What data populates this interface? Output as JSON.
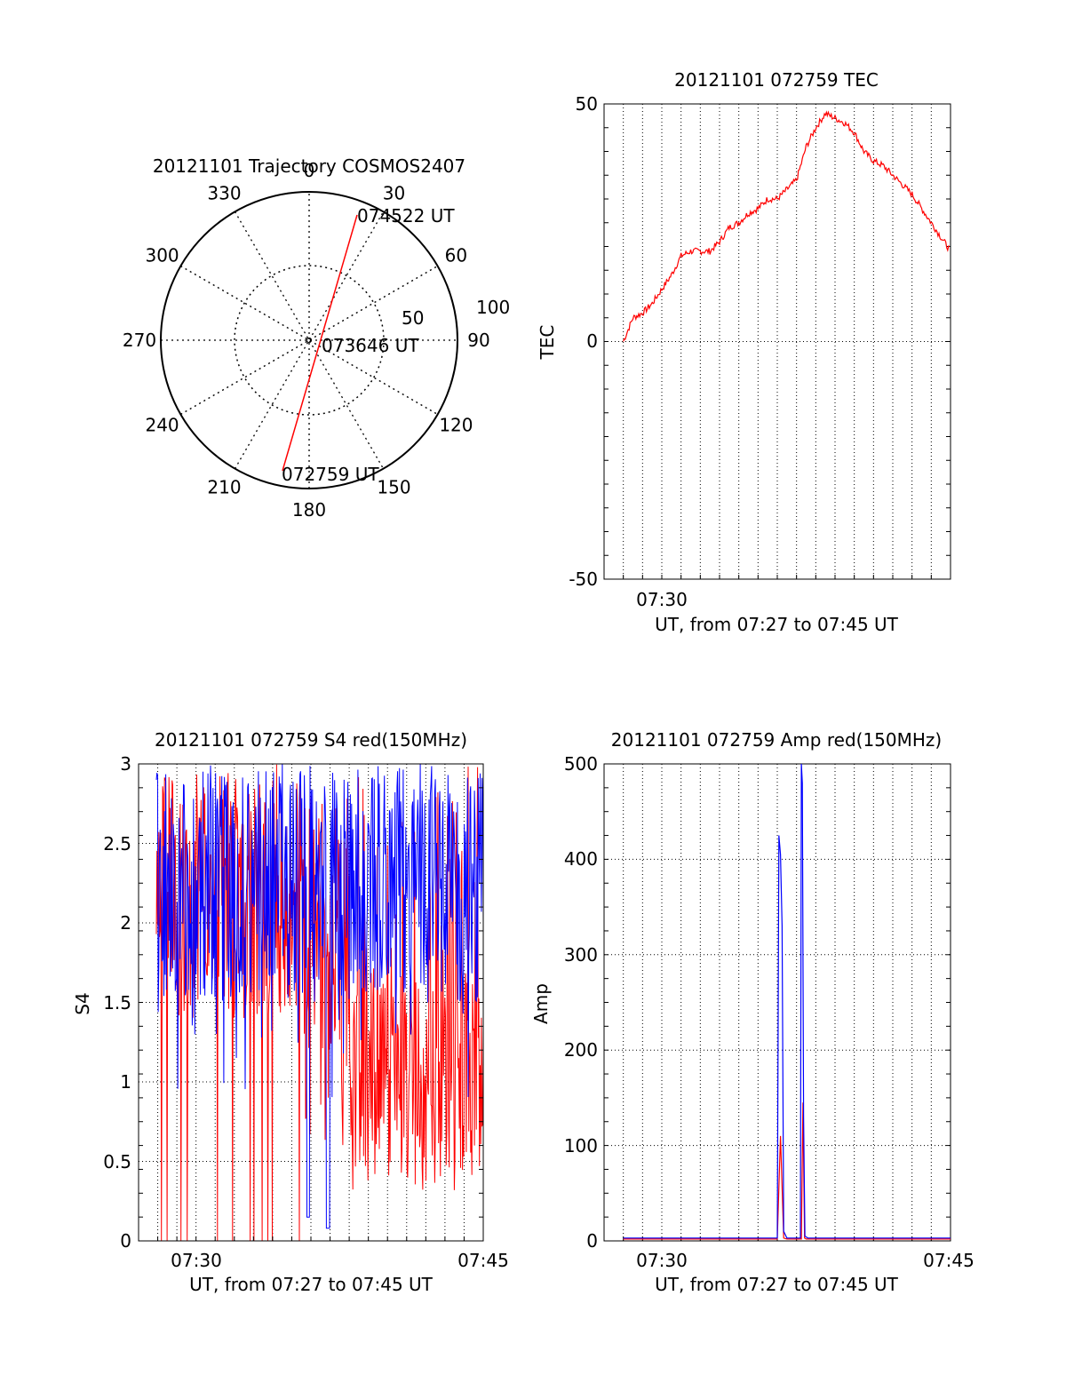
{
  "colors": {
    "red": "#ff0000",
    "blue": "#0000ff",
    "axis": "#000000",
    "grid": "#000000",
    "background": "#ffffff"
  },
  "chart_data": [
    {
      "id": "trajectory",
      "type": "polar",
      "title": "20121101 Trajectory COSMOS2407",
      "azimuth_labels": [
        "0",
        "30",
        "60",
        "90",
        "120",
        "150",
        "180",
        "210",
        "240",
        "270",
        "300",
        "330"
      ],
      "radius_labels": [
        "50",
        "100"
      ],
      "grid": true,
      "series": [
        {
          "color": "red",
          "points": [
            {
              "azimuth": 196,
              "elevation": 5,
              "label": "072759 UT"
            },
            {
              "azimuth": 30,
              "elevation": 2,
              "label": "074522 UT"
            }
          ]
        }
      ],
      "annotations": [
        "074522 UT",
        "073646 UT",
        "072759 UT"
      ]
    },
    {
      "id": "tec",
      "type": "line",
      "title": "20121101 072759 TEC",
      "xlabel": "UT, from 07:27 to 07:45 UT",
      "ylabel": "TEC",
      "xlim": [
        "07:27",
        "07:45"
      ],
      "ylim": [
        -50,
        50
      ],
      "yticks": [
        "50",
        "0",
        "-50"
      ],
      "xticks": [
        "07:30"
      ],
      "grid": true,
      "series": [
        {
          "color": "red",
          "x": [
            "07:28:00",
            "07:28:30",
            "07:29:00",
            "07:29:30",
            "07:30:00",
            "07:30:30",
            "07:31:00",
            "07:31:30",
            "07:32:00",
            "07:32:30",
            "07:33:00",
            "07:33:30",
            "07:34:00",
            "07:34:30",
            "07:35:00",
            "07:35:30",
            "07:36:00",
            "07:36:30",
            "07:37:00",
            "07:37:30",
            "07:38:00",
            "07:38:30",
            "07:39:00",
            "07:39:30",
            "07:40:00",
            "07:40:30",
            "07:41:00",
            "07:41:30",
            "07:42:00",
            "07:42:30",
            "07:43:00",
            "07:43:30",
            "07:44:00",
            "07:44:30",
            "07:45:00"
          ],
          "y": [
            0,
            5,
            6,
            8,
            11,
            14,
            18,
            19,
            19,
            19,
            21,
            24,
            25,
            27,
            28,
            30,
            30,
            32,
            34,
            41,
            45,
            48,
            47,
            46,
            44,
            40,
            38,
            37,
            35,
            33,
            31,
            28,
            25,
            22,
            19
          ]
        }
      ]
    },
    {
      "id": "s4",
      "type": "line",
      "title": "20121101 072759 S4 red(150MHz)",
      "xlabel": "UT, from 07:27 to 07:45 UT",
      "ylabel": "S4",
      "xlim": [
        "07:27",
        "07:45"
      ],
      "ylim": [
        0,
        3
      ],
      "yticks": [
        "0",
        "0.5",
        "1",
        "1.5",
        "2",
        "2.5",
        "3"
      ],
      "xticks": [
        "07:30",
        "07:45"
      ],
      "grid": true,
      "series": [
        {
          "color": "red",
          "description_values": "dense noisy signal, 0 to 3",
          "x_range": [
            "07:27:55",
            "07:45:00"
          ],
          "y_range": [
            0,
            3
          ]
        },
        {
          "color": "blue",
          "description_values": "dense noisy signal, mostly 1.3 to 3",
          "x_range": [
            "07:27:55",
            "07:45:00"
          ],
          "y_range": [
            0.05,
            3
          ]
        }
      ]
    },
    {
      "id": "amp",
      "type": "line",
      "title": "20121101 072759 Amp red(150MHz)",
      "xlabel": "UT, from 07:27 to 07:45 UT",
      "ylabel": "Amp",
      "xlim": [
        "07:27",
        "07:45"
      ],
      "ylim": [
        0,
        500
      ],
      "yticks": [
        "0",
        "100",
        "200",
        "300",
        "400",
        "500"
      ],
      "xticks": [
        "07:30",
        "07:45"
      ],
      "grid": true,
      "series": [
        {
          "color": "red",
          "x": [
            "07:28:00",
            "07:36:00",
            "07:36:10",
            "07:36:20",
            "07:36:30",
            "07:37:15",
            "07:37:20",
            "07:37:25",
            "07:37:30",
            "07:45:00"
          ],
          "y": [
            2,
            2,
            110,
            3,
            2,
            2,
            145,
            3,
            2,
            2
          ]
        },
        {
          "color": "blue",
          "x": [
            "07:28:00",
            "07:36:00",
            "07:36:05",
            "07:36:10",
            "07:36:15",
            "07:36:20",
            "07:36:30",
            "07:37:12",
            "07:37:15",
            "07:37:18",
            "07:37:22",
            "07:37:26",
            "07:37:35",
            "07:45:00"
          ],
          "y": [
            3,
            3,
            425,
            405,
            330,
            10,
            3,
            3,
            500,
            480,
            130,
            5,
            3,
            3
          ]
        }
      ]
    }
  ]
}
